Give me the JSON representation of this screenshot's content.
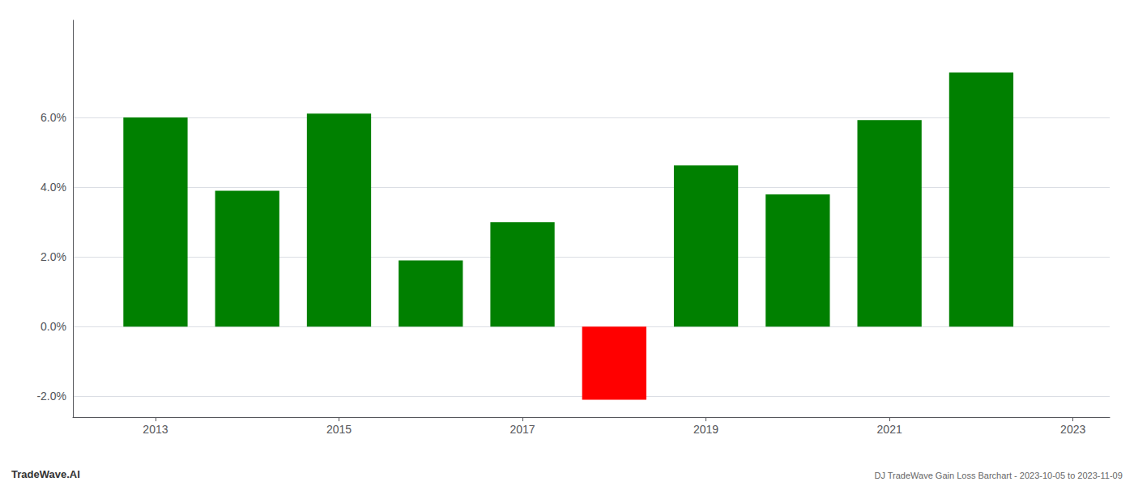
{
  "chart_data": {
    "type": "bar",
    "x": [
      2013,
      2014,
      2015,
      2016,
      2017,
      2018,
      2019,
      2020,
      2021,
      2022
    ],
    "values": [
      0.0601,
      0.039,
      0.0612,
      0.019,
      0.03,
      -0.021,
      0.0463,
      0.038,
      0.0593,
      0.073
    ],
    "colors": [
      "#008000",
      "#008000",
      "#008000",
      "#008000",
      "#008000",
      "#ff0000",
      "#008000",
      "#008000",
      "#008000",
      "#008000"
    ],
    "xlim": [
      2012.1,
      2023.4
    ],
    "xticks": [
      2013,
      2015,
      2017,
      2019,
      2021,
      2023
    ],
    "ylim": [
      -0.026,
      0.088
    ],
    "yticks": [
      {
        "value": -0.02,
        "label": "-2.0%"
      },
      {
        "value": 0.0,
        "label": "0.0%"
      },
      {
        "value": 0.02,
        "label": "2.0%"
      },
      {
        "value": 0.04,
        "label": "4.0%"
      },
      {
        "value": 0.06,
        "label": "6.0%"
      }
    ],
    "grid": true,
    "annotations": [
      "TradeWave.AI",
      "DJ TradeWave Gain Loss Barchart - 2023-10-05 to 2023-11-09"
    ]
  }
}
